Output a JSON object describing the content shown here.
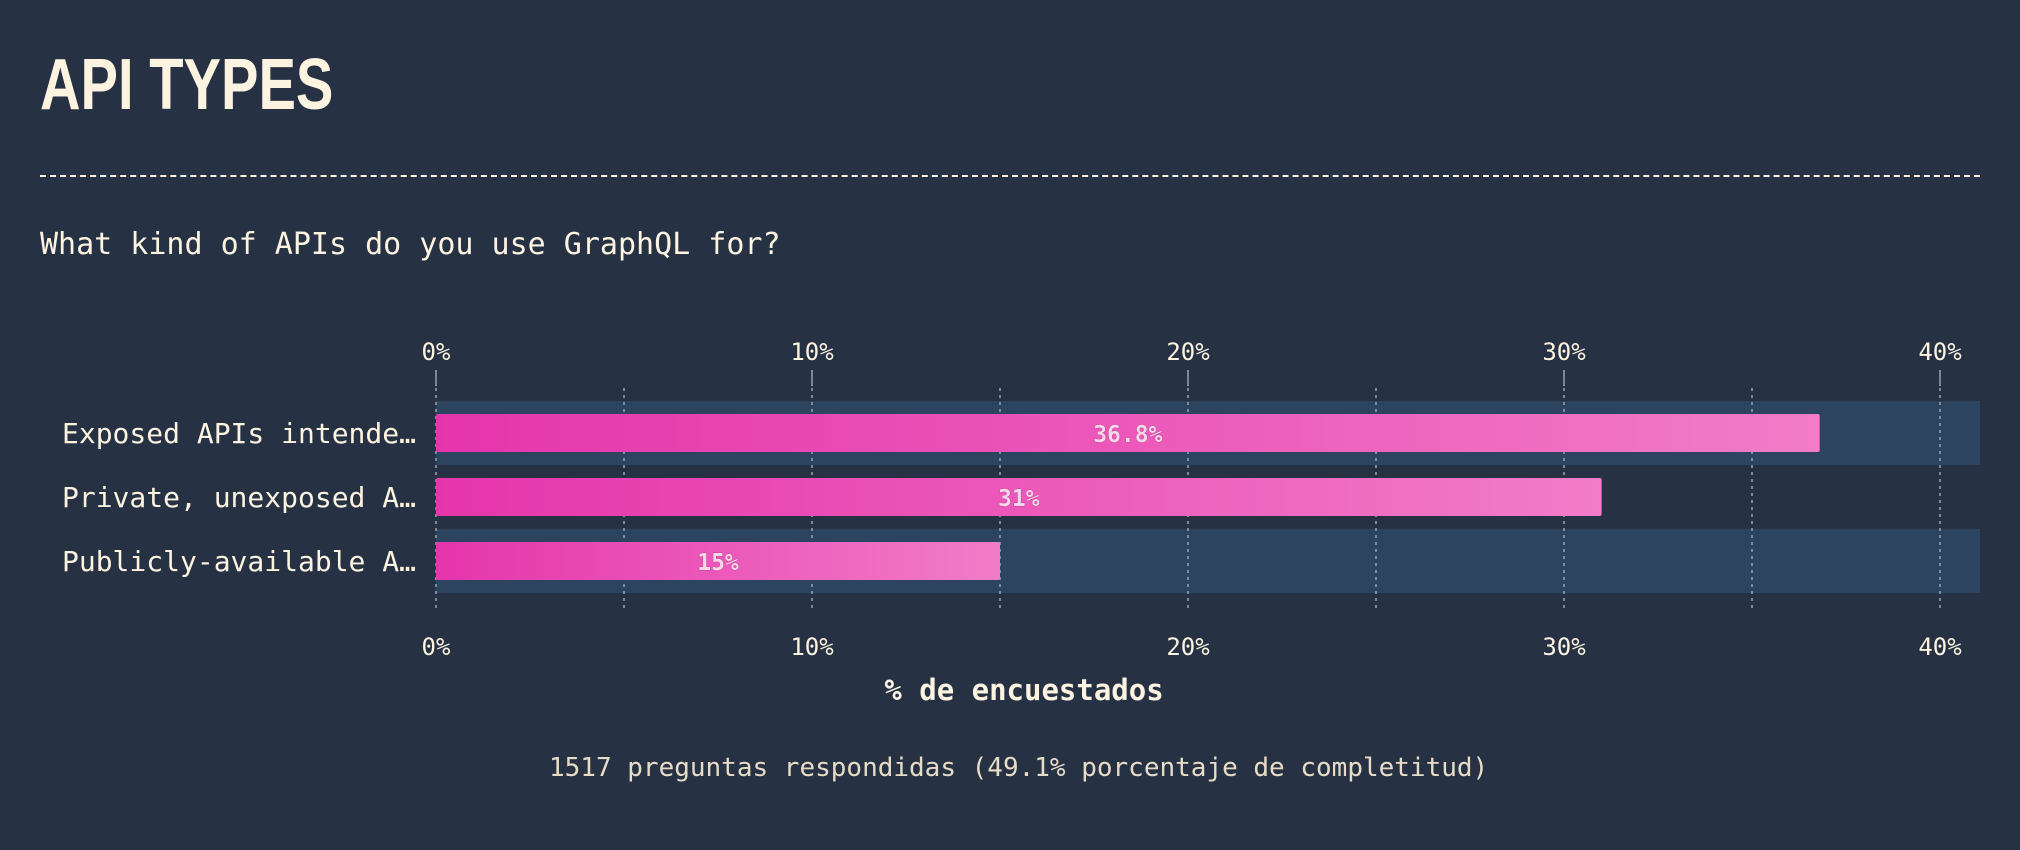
{
  "header": {
    "title": "API TYPES",
    "question": "What kind of APIs do you use GraphQL for?"
  },
  "footer": {
    "text": "1517 preguntas respondidas (49.1% porcentaje de completitud)"
  },
  "colors": {
    "background": "#263243",
    "text": "#fdf3e1",
    "bar_start": "#e535ab",
    "bar_end": "#f27cc8",
    "row_band": "#2d4461",
    "grid": "#9aa3ad"
  },
  "chart_data": {
    "type": "bar",
    "orientation": "horizontal",
    "categories": [
      "Exposed APIs intende…",
      "Private, unexposed A…",
      "Publicly-available A…"
    ],
    "values": [
      36.8,
      31,
      15
    ],
    "value_labels": [
      "36.8%",
      "31%",
      "15%"
    ],
    "xlim": [
      0,
      40
    ],
    "xticks": [
      0,
      10,
      20,
      30,
      40
    ],
    "xtick_labels": [
      "0%",
      "10%",
      "20%",
      "30%",
      "40%"
    ],
    "xlabel": "% de encuestados",
    "ylabel": "",
    "grid": true,
    "legend": "none"
  }
}
